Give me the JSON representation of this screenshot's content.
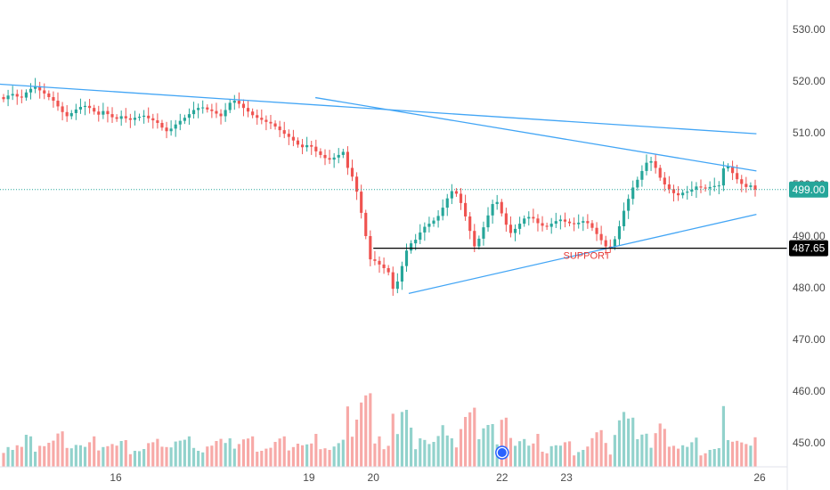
{
  "chart_data": {
    "type": "candlestick",
    "y_axis": {
      "side": "right",
      "ticks": [
        "530.00",
        "520.00",
        "510.00",
        "500.00",
        "490.00",
        "480.00",
        "470.00",
        "460.00",
        "450.00"
      ],
      "tick_values": [
        530,
        520,
        510,
        500,
        490,
        480,
        470,
        460,
        450
      ],
      "range": [
        447,
        534
      ]
    },
    "x_axis": {
      "ticks": [
        {
          "label": "16",
          "day": 16
        },
        {
          "label": "19",
          "day": 19
        },
        {
          "label": "20",
          "day": 20
        },
        {
          "label": "22",
          "day": 22
        },
        {
          "label": "23",
          "day": 23
        },
        {
          "label": "26",
          "day": 26
        }
      ],
      "range": [
        13.13,
        26.14
      ]
    },
    "last_price": {
      "value": 499.0,
      "label": "499.00",
      "color": "#26a69a"
    },
    "support": {
      "value": 487.65,
      "label": "487.65",
      "annotation": "SUPPORT",
      "start_day": 20.0,
      "end_day": 26.14
    },
    "trendlines": [
      {
        "from": {
          "day": 13.95,
          "price": 519.6
        },
        "to": {
          "day": 25.95,
          "price": 509.8
        }
      },
      {
        "from": {
          "day": 19.1,
          "price": 516.8
        },
        "to": {
          "day": 25.95,
          "price": 502.6
        }
      },
      {
        "from": {
          "day": 20.55,
          "price": 478.9
        },
        "to": {
          "day": 25.95,
          "price": 494.2
        }
      }
    ],
    "candles_close": [
      516.5,
      517.2,
      517.5,
      517.0,
      516.8,
      517.8,
      518.5,
      519.0,
      518.2,
      517.6,
      516.9,
      516.2,
      515.1,
      514.0,
      513.2,
      513.8,
      514.5,
      515.0,
      515.2,
      514.8,
      514.1,
      513.5,
      514.2,
      513.6,
      513.0,
      512.7,
      513.2,
      512.8,
      512.5,
      512.9,
      513.1,
      513.3,
      512.8,
      512.4,
      511.9,
      511.0,
      510.3,
      510.8,
      511.6,
      512.3,
      512.9,
      513.6,
      514.4,
      514.8,
      514.9,
      514.5,
      514.2,
      513.7,
      513.2,
      514.4,
      515.8,
      516.2,
      515.6,
      514.8,
      514.1,
      513.4,
      512.9,
      512.5,
      512.1,
      511.8,
      511.2,
      510.5,
      509.8,
      509.2,
      508.5,
      507.7,
      507.2,
      507.6,
      507.3,
      506.4,
      505.7,
      505.1,
      504.8,
      505.2,
      505.7,
      506.3,
      503.2,
      501.5,
      498.6,
      494.5,
      490.0,
      485.5,
      485.2,
      484.5,
      483.8,
      483.0,
      479.8,
      481.2,
      484.2,
      487.2,
      488.6,
      489.3,
      490.7,
      491.8,
      492.4,
      493.0,
      493.9,
      495.5,
      497.3,
      498.7,
      498.2,
      496.4,
      493.8,
      491.0,
      488.0,
      489.5,
      491.7,
      494.0,
      496.2,
      496.6,
      494.4,
      492.2,
      490.6,
      491.4,
      492.4,
      493.4,
      493.7,
      493.4,
      492.5,
      492.0,
      491.8,
      492.4,
      492.9,
      493.2,
      492.8,
      492.5,
      492.3,
      492.6,
      492.9,
      492.5,
      491.6,
      490.4,
      489.2,
      488.0,
      487.9,
      489.4,
      491.9,
      494.9,
      497.2,
      499.4,
      500.9,
      502.6,
      504.2,
      504.5,
      503.2,
      501.3,
      500.0,
      499.1,
      498.3,
      497.9,
      498.4,
      498.6,
      499.0,
      499.6,
      499.4,
      499.2,
      499.5,
      499.7,
      499.8,
      503.1,
      503.5,
      502.2,
      501.0,
      500.1,
      499.5,
      499.8,
      499.0
    ],
    "volume_scale": {
      "max": 1.0
    }
  }
}
